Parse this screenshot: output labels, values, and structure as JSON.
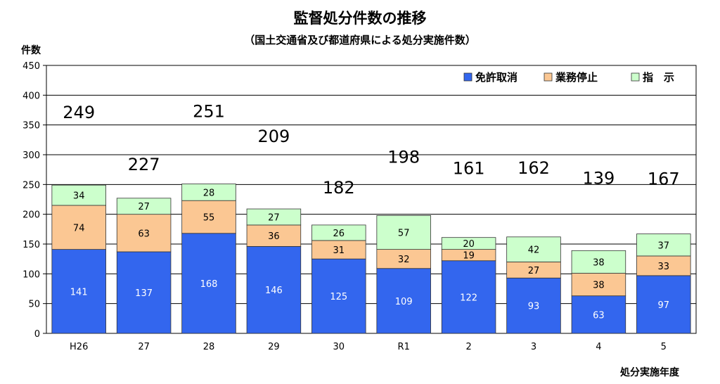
{
  "chart_data": {
    "type": "bar",
    "stacked": true,
    "title": "監督処分件数の推移",
    "subtitle": "（国土交通省及び都道府県による処分実施件数）",
    "ylabel": "件数",
    "xlabel": "処分実施年度",
    "ylim": [
      0,
      450
    ],
    "yticks": [
      0,
      50,
      100,
      150,
      200,
      250,
      300,
      350,
      400,
      450
    ],
    "grid": true,
    "legend_position": "top-right",
    "categories": [
      "H26",
      "27",
      "28",
      "29",
      "30",
      "R1",
      "2",
      "3",
      "4",
      "5"
    ],
    "series": [
      {
        "name": "免許取消",
        "color": "#3366ee",
        "label_color": "#ffffff",
        "values": [
          141,
          137,
          168,
          146,
          125,
          109,
          122,
          93,
          63,
          97
        ]
      },
      {
        "name": "業務停止",
        "color": "#fbc793",
        "label_color": "#000000",
        "values": [
          74,
          63,
          55,
          36,
          31,
          32,
          19,
          27,
          38,
          33
        ]
      },
      {
        "name": "指　示",
        "color": "#ccffcc",
        "label_color": "#000000",
        "values": [
          34,
          27,
          28,
          27,
          26,
          57,
          20,
          42,
          38,
          37
        ]
      }
    ],
    "totals": [
      249,
      227,
      251,
      209,
      182,
      198,
      161,
      162,
      139,
      167
    ]
  }
}
